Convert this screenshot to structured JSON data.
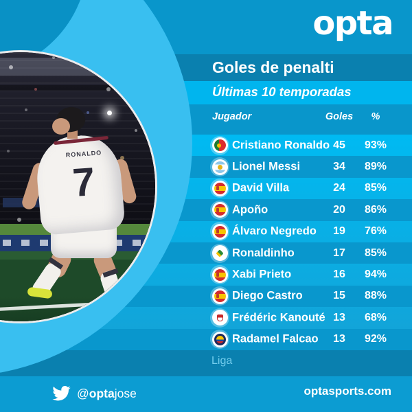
{
  "brand": {
    "logo_text": "opta",
    "site_url": "optasports.com",
    "twitter": {
      "at": "@",
      "bold_part": "opta",
      "regular_part": "jose"
    }
  },
  "header": {
    "title": "Goles de penalti",
    "subtitle": "Últimas 10 temporadas"
  },
  "table": {
    "columns": {
      "player": "Jugador",
      "goals": "Goles",
      "pct": "%"
    },
    "rows": [
      {
        "player": "Cristiano Ronaldo",
        "goals": "45",
        "pct": "93%",
        "flag": "portugal-flag"
      },
      {
        "player": "Lionel Messi",
        "goals": "34",
        "pct": "89%",
        "flag": "argentina-badge"
      },
      {
        "player": "David Villa",
        "goals": "24",
        "pct": "85%",
        "flag": "spain-flag"
      },
      {
        "player": "Apoño",
        "goals": "20",
        "pct": "86%",
        "flag": "spain-flag"
      },
      {
        "player": "Álvaro Negredo",
        "goals": "19",
        "pct": "76%",
        "flag": "spain-flag"
      },
      {
        "player": "Ronaldinho",
        "goals": "17",
        "pct": "85%",
        "flag": "brazil-badge"
      },
      {
        "player": "Xabi Prieto",
        "goals": "16",
        "pct": "94%",
        "flag": "spain-flag"
      },
      {
        "player": "Diego Castro",
        "goals": "15",
        "pct": "88%",
        "flag": "spain-flag"
      },
      {
        "player": "Frédéric Kanouté",
        "goals": "13",
        "pct": "68%",
        "flag": "sevilla-badge"
      },
      {
        "player": "Radamel Falcao",
        "goals": "13",
        "pct": "92%",
        "flag": "colombia-badge"
      }
    ]
  },
  "footer": {
    "league_label": "Liga"
  },
  "photo": {
    "jersey_name": "RONALDO",
    "jersey_number": "7"
  },
  "colors": {
    "background": "#0996CB",
    "title_band": "#0A80AF",
    "subtitle_band": "#00B5EE",
    "bright_row": "#00B8F0",
    "dark_row": "#0997CD",
    "ring": "#39BFF0",
    "footer_band": "#0C9CD2",
    "liga_text": "#74CEEE",
    "text": "#FFFFFF"
  },
  "chart_data": {
    "type": "table",
    "title": "Goles de penalti",
    "subtitle": "Últimas 10 temporadas",
    "columns": [
      "Jugador",
      "Goles",
      "%"
    ],
    "rows": [
      [
        "Cristiano Ronaldo",
        45,
        93
      ],
      [
        "Lionel Messi",
        34,
        89
      ],
      [
        "David Villa",
        24,
        85
      ],
      [
        "Apoño",
        20,
        86
      ],
      [
        "Álvaro Negredo",
        19,
        76
      ],
      [
        "Ronaldinho",
        17,
        85
      ],
      [
        "Xabi Prieto",
        16,
        94
      ],
      [
        "Diego Castro",
        15,
        88
      ],
      [
        "Frédéric Kanouté",
        13,
        68
      ],
      [
        "Radamel Falcao",
        13,
        92
      ]
    ],
    "pct_unit": "%",
    "footnote": "Liga"
  }
}
